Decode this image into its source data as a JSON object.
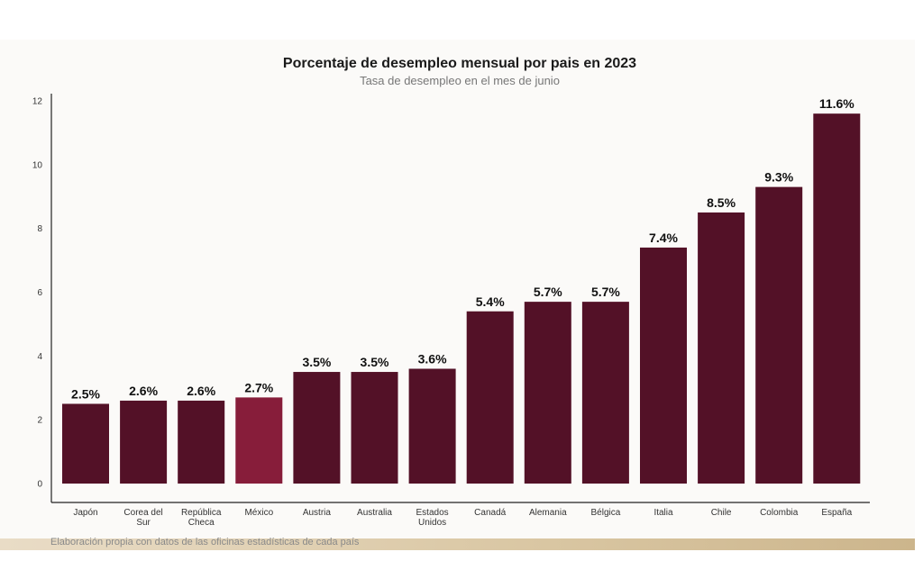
{
  "source_note": "Elaboración propia con datos de las oficinas estadísticas de cada país",
  "colors": {
    "bar": "#531127",
    "highlight": "#871d3a",
    "axis": "#222222"
  },
  "chart_data": {
    "type": "bar",
    "title": "Porcentaje de desempleo mensual por pais en 2023",
    "subtitle": "Tasa de desempleo en el mes de junio",
    "xlabel": "",
    "ylabel": "",
    "ylim": [
      0,
      12
    ],
    "yticks": [
      0,
      2,
      4,
      6,
      8,
      10,
      12
    ],
    "grid": false,
    "legend": "none",
    "highlight_category": "México",
    "categories": [
      [
        "Japón"
      ],
      [
        "Corea del",
        "Sur"
      ],
      [
        "República",
        "Checa"
      ],
      [
        "México"
      ],
      [
        "Austria"
      ],
      [
        "Australia"
      ],
      [
        "Estados",
        "Unidos"
      ],
      [
        "Canadá"
      ],
      [
        "Alemania"
      ],
      [
        "Bélgica"
      ],
      [
        "Italia"
      ],
      [
        "Chile"
      ],
      [
        "Colombia"
      ],
      [
        "España"
      ]
    ],
    "values": [
      2.5,
      2.6,
      2.6,
      2.7,
      3.5,
      3.5,
      3.6,
      5.4,
      5.7,
      5.7,
      7.4,
      8.5,
      9.3,
      11.6
    ],
    "data_labels": [
      "2.5%",
      "2.6%",
      "2.6%",
      "2.7%",
      "3.5%",
      "3.5%",
      "3.6%",
      "5.4%",
      "5.7%",
      "5.7%",
      "7.4%",
      "8.5%",
      "9.3%",
      "11.6%"
    ]
  }
}
